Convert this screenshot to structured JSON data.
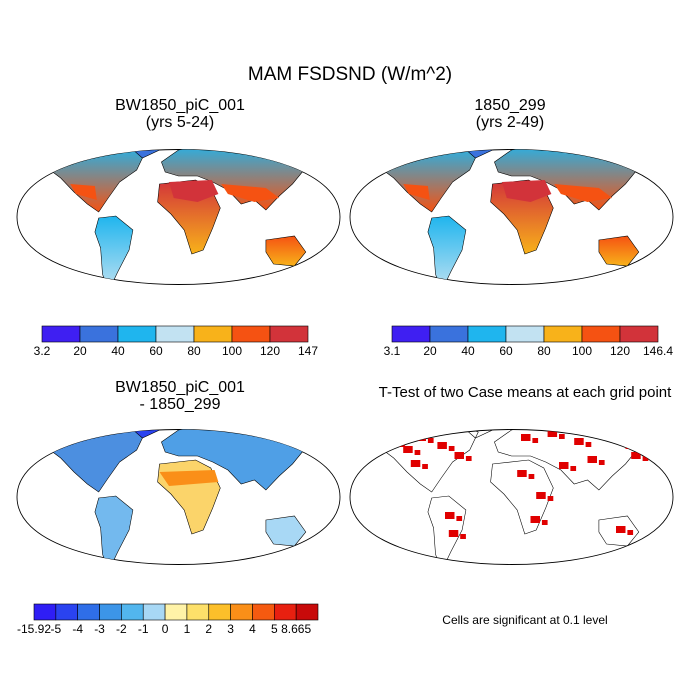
{
  "title": "MAM FSDSND (W/m^2)",
  "panels": [
    {
      "line1": "BW1850_piC_001",
      "line2": "(yrs 5-24)"
    },
    {
      "line1": "1850_299",
      "line2": "(yrs 2-49)"
    },
    {
      "line1": "BW1850_piC_001",
      "line2": "- 1850_299"
    },
    {
      "line1": "T-Test of two Case means at each grid point",
      "line2": ""
    }
  ],
  "significance_note": "Cells are significant at 0.1 level",
  "chart_data": [
    {
      "type": "heatmap",
      "title": "BW1850_piC_001 (yrs 5-24)",
      "projection": "robinson",
      "colorbar": {
        "labels": [
          "3.2",
          "20",
          "40",
          "60",
          "80",
          "100",
          "120",
          "147"
        ],
        "colors": [
          "#3f1ff2",
          "#3a72dd",
          "#1fb5ee",
          "#c2e2f2",
          "#f8b21a",
          "#f55212",
          "#d2333a"
        ]
      }
    },
    {
      "type": "heatmap",
      "title": "1850_299 (yrs 2-49)",
      "projection": "robinson",
      "colorbar": {
        "labels": [
          "3.1",
          "20",
          "40",
          "60",
          "80",
          "100",
          "120",
          "146.4"
        ],
        "colors": [
          "#3f1ff2",
          "#3a72dd",
          "#1fb5ee",
          "#c2e2f2",
          "#f8b21a",
          "#f55212",
          "#d2333a"
        ]
      }
    },
    {
      "type": "heatmap",
      "title": "BW1850_piC_001 - 1850_299",
      "projection": "robinson",
      "colorbar": {
        "labels": [
          "-15.92",
          "-5",
          "-4",
          "-3",
          "-2",
          "-1",
          "0",
          "1",
          "2",
          "3",
          "4",
          "5",
          "8.665"
        ],
        "colors": [
          "#2f1ef5",
          "#2a43f0",
          "#2f6ee8",
          "#3c95e8",
          "#52b6ee",
          "#a8d8f5",
          "#fff3a8",
          "#fde06a",
          "#fcbf2a",
          "#fa8f18",
          "#f55a10",
          "#e82010",
          "#c80a0a"
        ]
      }
    },
    {
      "type": "heatmap",
      "title": "T-Test of two Case means at each grid point",
      "projection": "robinson",
      "significance_color": "#e00000"
    }
  ]
}
